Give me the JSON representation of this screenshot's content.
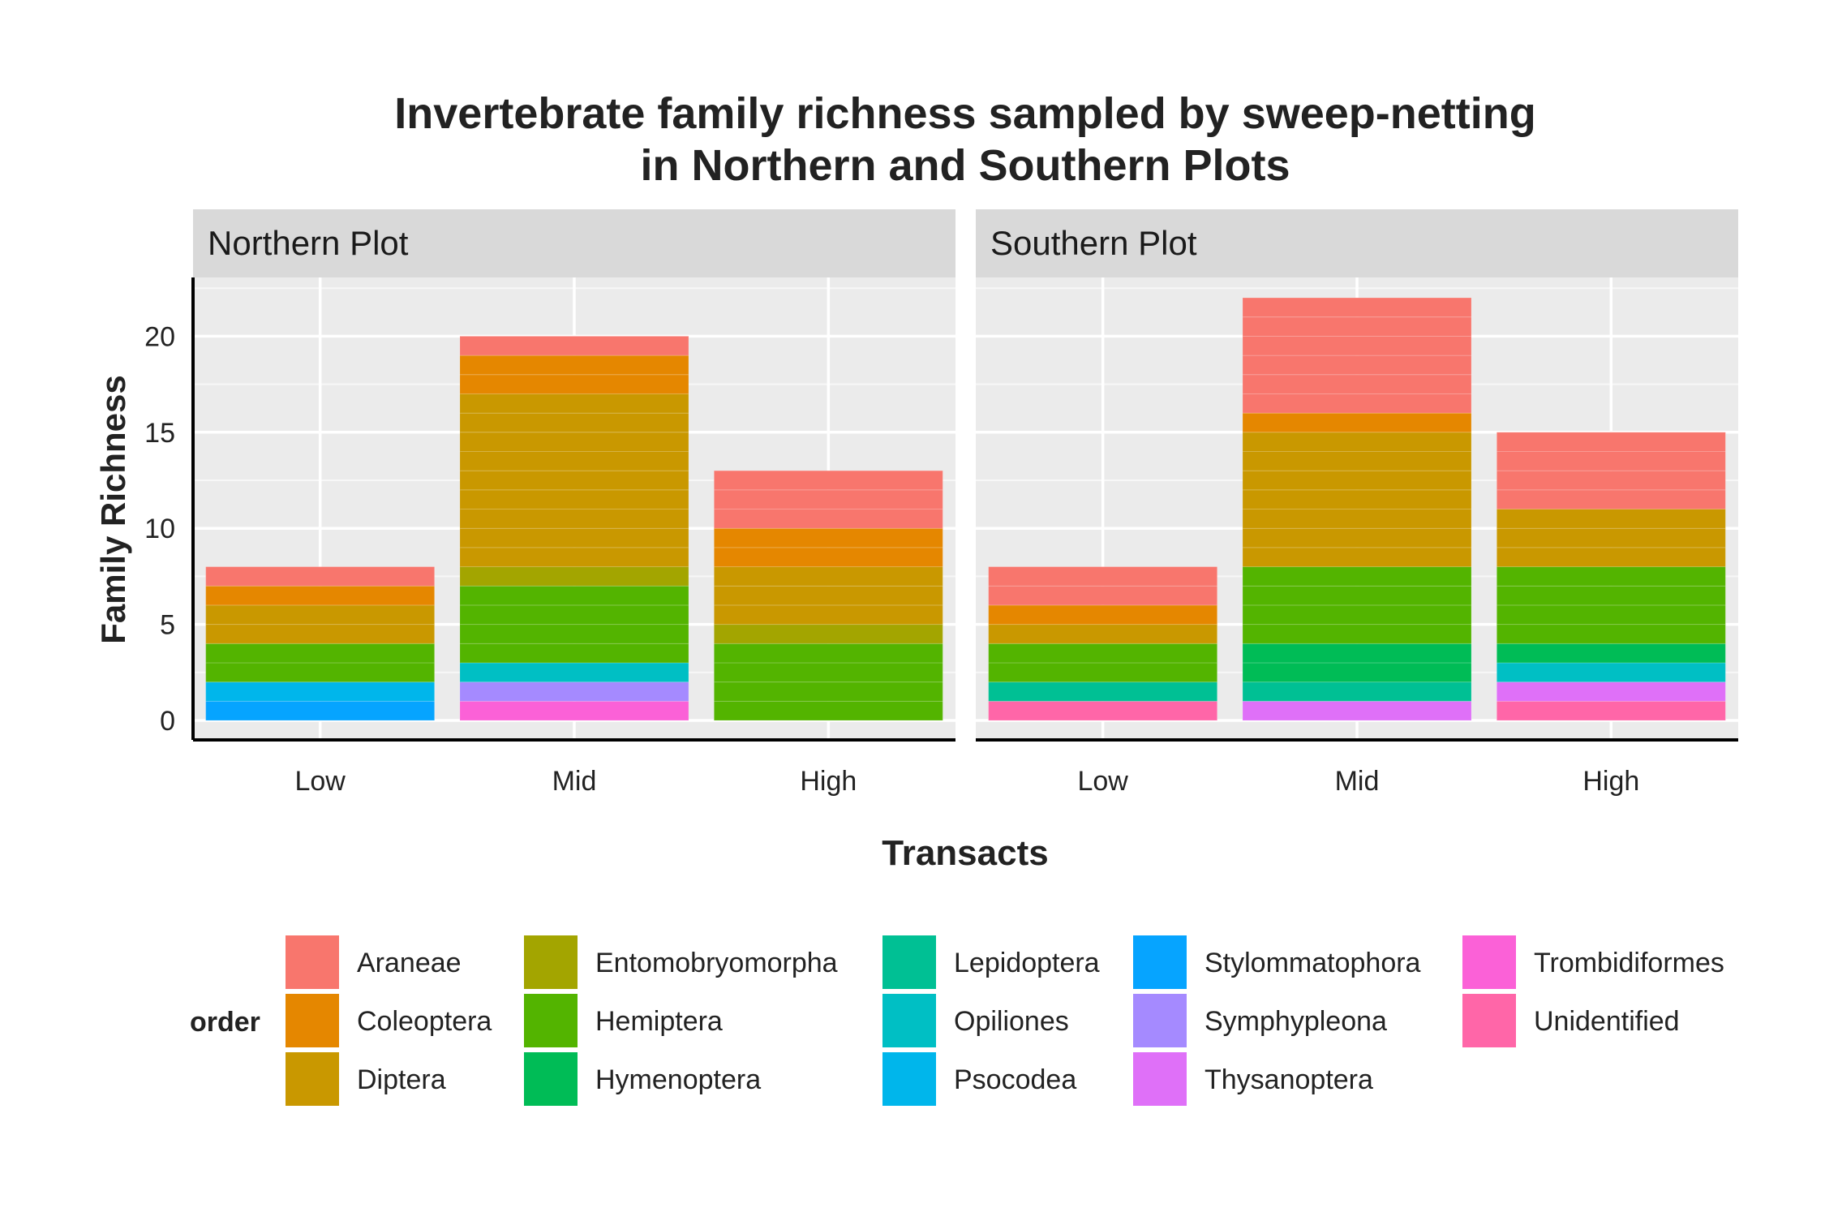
{
  "chart_data": {
    "type": "bar",
    "stacked": true,
    "title_lines": [
      "Invertebrate family richness sampled by sweep-netting",
      "in Northern and Southern Plots"
    ],
    "xlabel": "Transacts",
    "ylabel": "Family Richness",
    "ylim": [
      0,
      23
    ],
    "yticks": [
      0,
      5,
      10,
      15,
      20
    ],
    "categories": [
      "Low",
      "Mid",
      "High"
    ],
    "grid": true,
    "legend": {
      "title": "order",
      "placement": "bottom",
      "entries": [
        {
          "name": "Araneae",
          "color": "#F8766D"
        },
        {
          "name": "Coleoptera",
          "color": "#E58700"
        },
        {
          "name": "Diptera",
          "color": "#C99800"
        },
        {
          "name": "Entomobryomorpha",
          "color": "#A3A500"
        },
        {
          "name": "Hemiptera",
          "color": "#53B400"
        },
        {
          "name": "Hymenoptera",
          "color": "#00BC56"
        },
        {
          "name": "Lepidoptera",
          "color": "#00C094"
        },
        {
          "name": "Opiliones",
          "color": "#00BFC4"
        },
        {
          "name": "Psocodea",
          "color": "#00B6EB"
        },
        {
          "name": "Stylommatophora",
          "color": "#06A4FF"
        },
        {
          "name": "Symphypleona",
          "color": "#A58AFF"
        },
        {
          "name": "Thysanoptera",
          "color": "#DF70F8"
        },
        {
          "name": "Trombidiformes",
          "color": "#FB61D7"
        },
        {
          "name": "Unidentified",
          "color": "#FF66A8"
        }
      ]
    },
    "panels": [
      {
        "name": "Northern Plot",
        "bars": [
          {
            "category": "Low",
            "segments": [
              {
                "order": "Araneae",
                "value": 1
              },
              {
                "order": "Coleoptera",
                "value": 1
              },
              {
                "order": "Diptera",
                "value": 2
              },
              {
                "order": "Hemiptera",
                "value": 2
              },
              {
                "order": "Psocodea",
                "value": 1
              },
              {
                "order": "Stylommatophora",
                "value": 1
              }
            ]
          },
          {
            "category": "Mid",
            "segments": [
              {
                "order": "Araneae",
                "value": 1
              },
              {
                "order": "Coleoptera",
                "value": 2
              },
              {
                "order": "Diptera",
                "value": 9
              },
              {
                "order": "Entomobryomorpha",
                "value": 1
              },
              {
                "order": "Hemiptera",
                "value": 4
              },
              {
                "order": "Opiliones",
                "value": 1
              },
              {
                "order": "Symphypleona",
                "value": 1
              },
              {
                "order": "Trombidiformes",
                "value": 1
              }
            ]
          },
          {
            "category": "High",
            "segments": [
              {
                "order": "Araneae",
                "value": 3
              },
              {
                "order": "Coleoptera",
                "value": 2
              },
              {
                "order": "Diptera",
                "value": 3
              },
              {
                "order": "Entomobryomorpha",
                "value": 1
              },
              {
                "order": "Hemiptera",
                "value": 4
              }
            ]
          }
        ]
      },
      {
        "name": "Southern Plot",
        "bars": [
          {
            "category": "Low",
            "segments": [
              {
                "order": "Araneae",
                "value": 2
              },
              {
                "order": "Coleoptera",
                "value": 1
              },
              {
                "order": "Diptera",
                "value": 1
              },
              {
                "order": "Hemiptera",
                "value": 2
              },
              {
                "order": "Lepidoptera",
                "value": 1
              },
              {
                "order": "Unidentified",
                "value": 1
              }
            ]
          },
          {
            "category": "Mid",
            "segments": [
              {
                "order": "Araneae",
                "value": 6
              },
              {
                "order": "Coleoptera",
                "value": 1
              },
              {
                "order": "Diptera",
                "value": 7
              },
              {
                "order": "Hemiptera",
                "value": 4
              },
              {
                "order": "Hymenoptera",
                "value": 2
              },
              {
                "order": "Lepidoptera",
                "value": 1
              },
              {
                "order": "Thysanoptera",
                "value": 1
              }
            ]
          },
          {
            "category": "High",
            "segments": [
              {
                "order": "Araneae",
                "value": 4
              },
              {
                "order": "Diptera",
                "value": 3
              },
              {
                "order": "Hemiptera",
                "value": 4
              },
              {
                "order": "Hymenoptera",
                "value": 1
              },
              {
                "order": "Opiliones",
                "value": 1
              },
              {
                "order": "Thysanoptera",
                "value": 1
              },
              {
                "order": "Unidentified",
                "value": 1
              }
            ]
          }
        ]
      }
    ]
  }
}
